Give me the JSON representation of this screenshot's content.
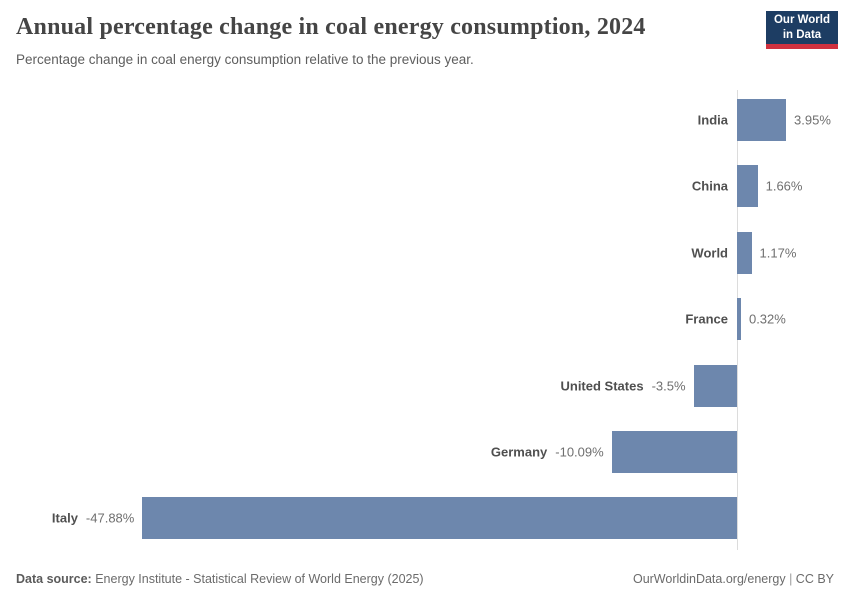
{
  "header": {
    "title": "Annual percentage change in coal energy consumption, 2024",
    "subtitle": "Percentage change in coal energy consumption relative to the previous year."
  },
  "logo": {
    "line1": "Our World",
    "line2": "in Data",
    "bg_color": "#1d3d63",
    "accent_color": "#d0313f"
  },
  "chart_data": {
    "type": "bar",
    "orientation": "horizontal",
    "title": "Annual percentage change in coal energy consumption, 2024",
    "categories": [
      "India",
      "China",
      "World",
      "France",
      "United States",
      "Germany",
      "Italy"
    ],
    "values": [
      3.95,
      1.66,
      1.17,
      0.32,
      -3.5,
      -10.09,
      -47.88
    ],
    "value_labels": [
      "3.95%",
      "1.66%",
      "1.17%",
      "0.32%",
      "-3.5%",
      "-10.09%",
      "-47.88%"
    ],
    "unit": "%",
    "xlim": [
      -47.88,
      3.95
    ],
    "bar_color": "#6d87ad",
    "axis_color": "#dcdcdc",
    "grid": false,
    "legend": false
  },
  "footer": {
    "datasource_label": "Data source:",
    "datasource_value": " Energy Institute - Statistical Review of World Energy (2025)",
    "site_link": "OurWorldinData.org/energy",
    "separator": " | ",
    "license": "CC BY"
  }
}
